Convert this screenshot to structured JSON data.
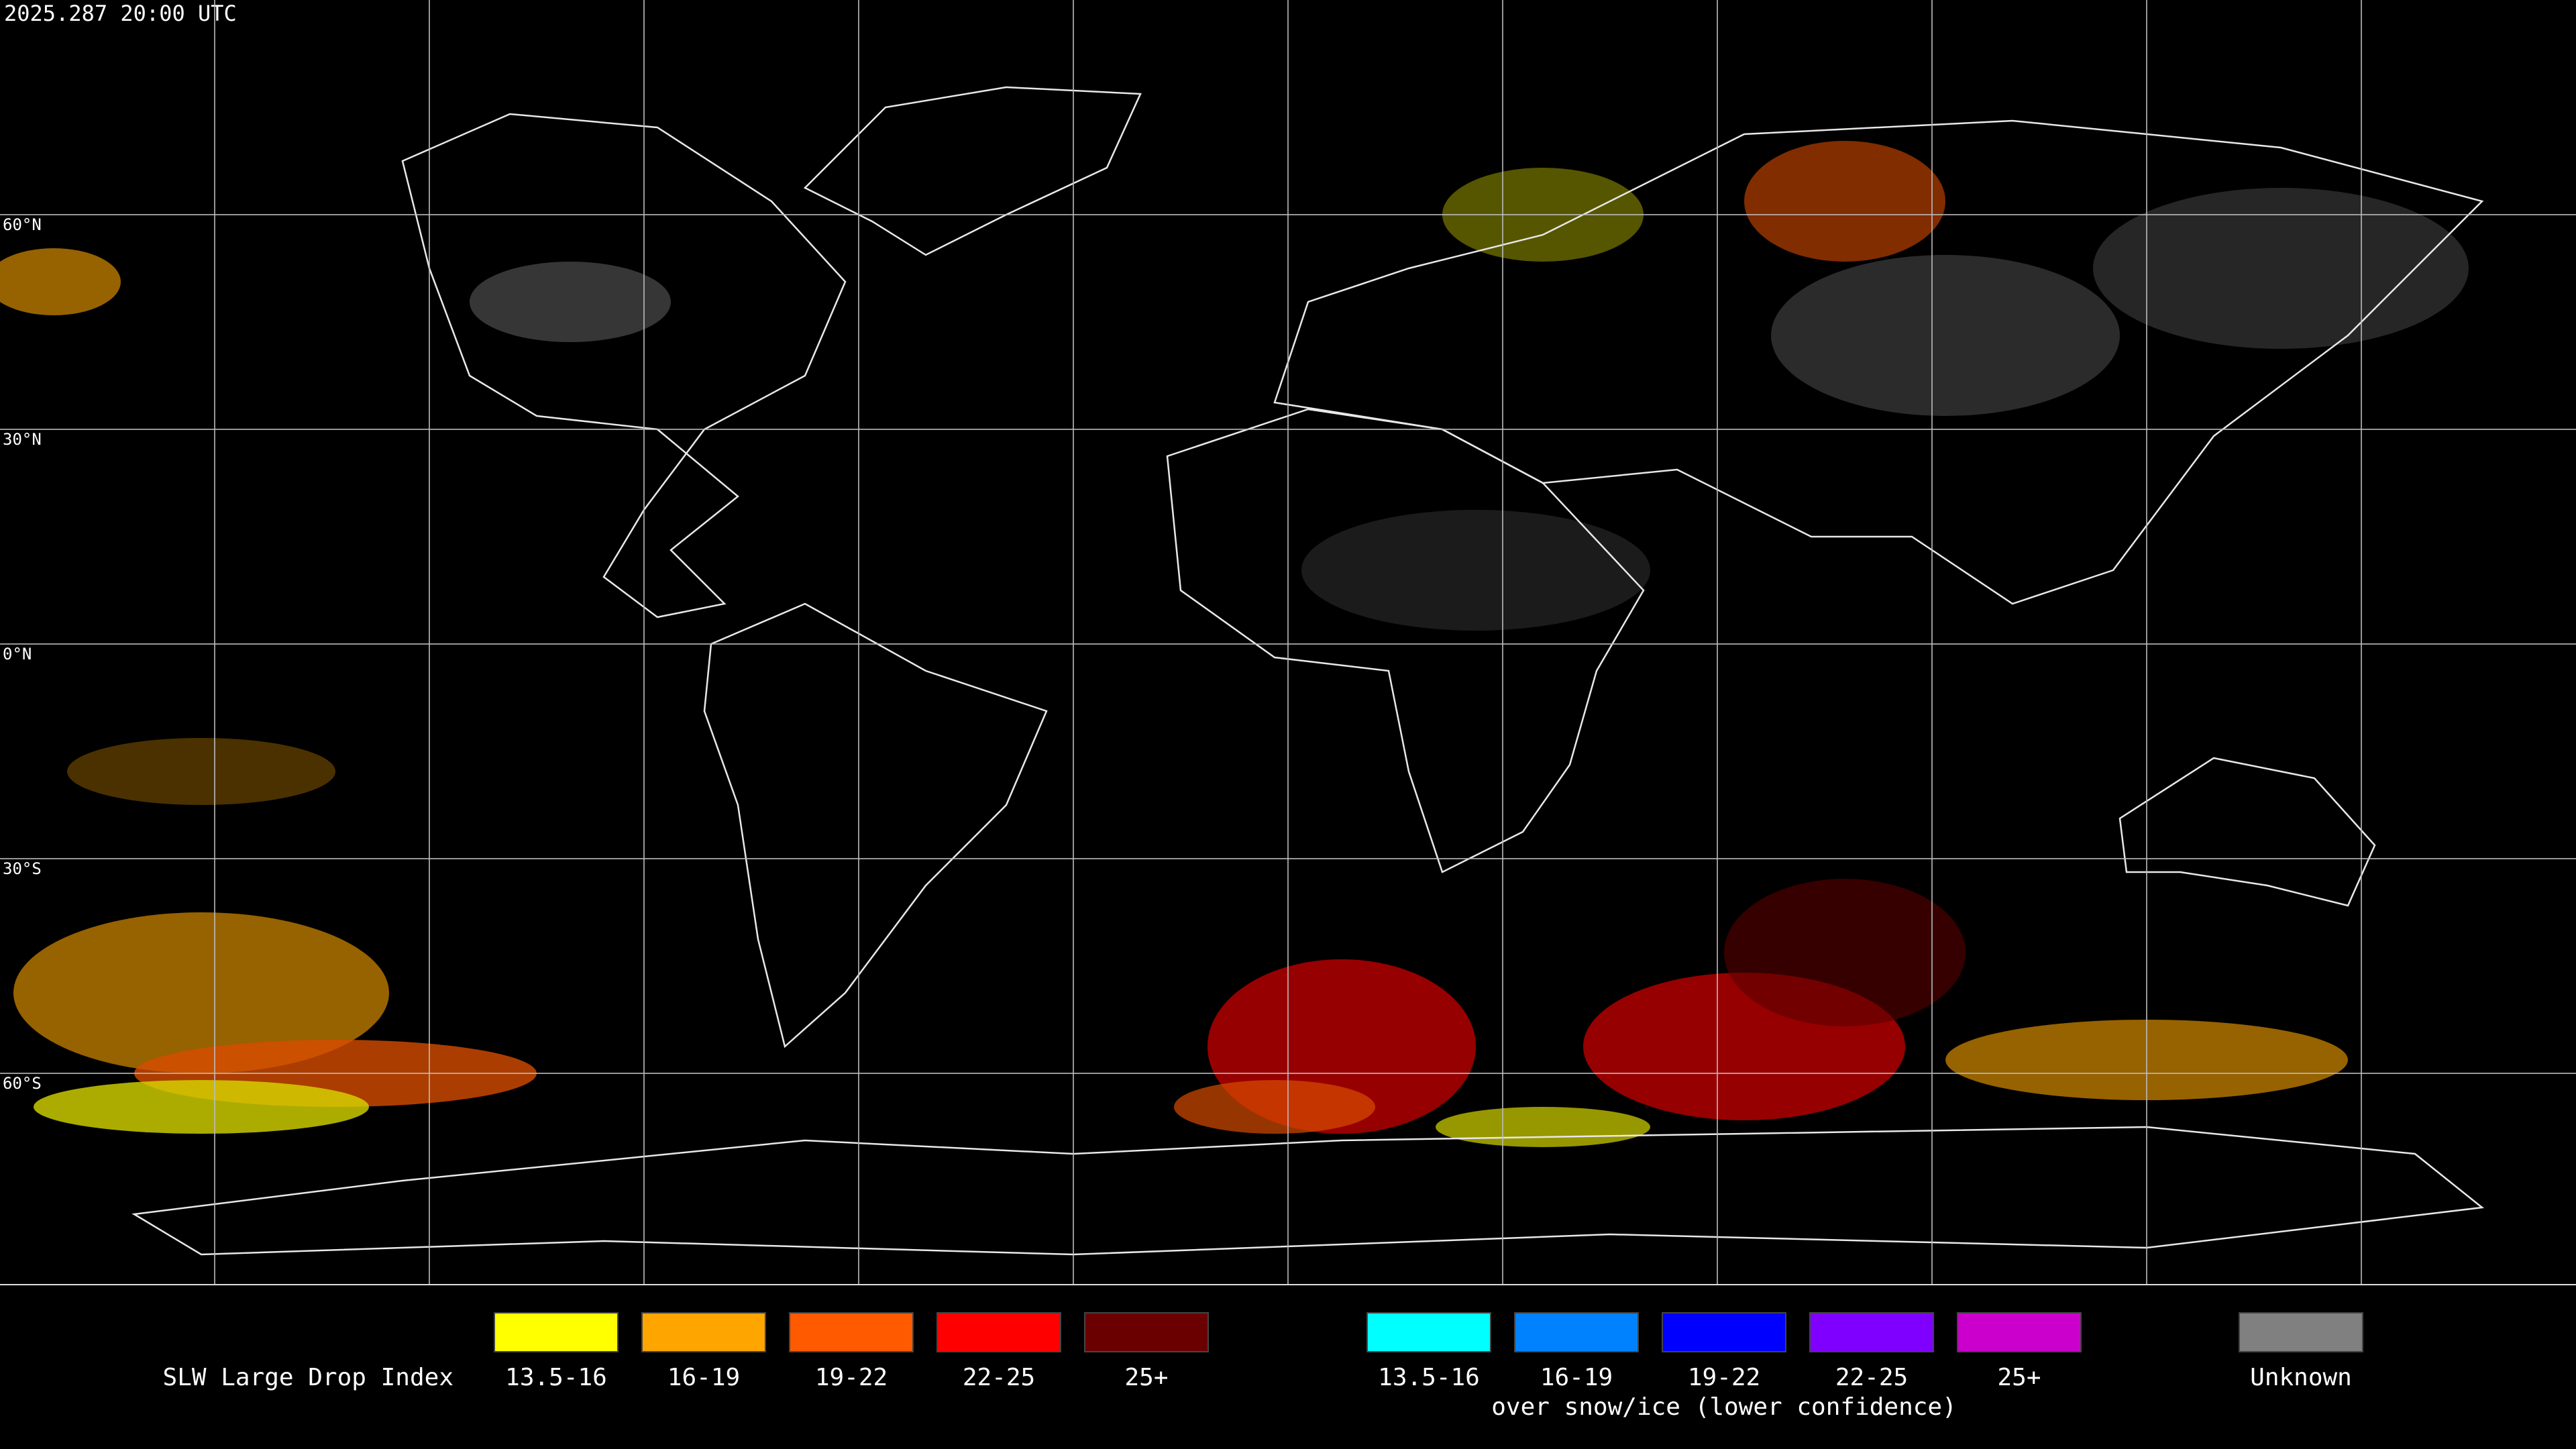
{
  "timestamp": "2025.287 20:00 UTC",
  "grid_labels": [
    "60°N",
    "30°N",
    "0°N",
    "30°S",
    "60°S"
  ],
  "legend": {
    "title": "SLW Large Drop Index",
    "groups": [
      {
        "items": [
          {
            "label": "13.5-16",
            "color": "#ffff00"
          },
          {
            "label": "16-19",
            "color": "#ffa500"
          },
          {
            "label": "19-22",
            "color": "#ff5a00"
          },
          {
            "label": "22-25",
            "color": "#ff0000"
          },
          {
            "label": "25+",
            "color": "#6b0000"
          }
        ]
      },
      {
        "items": [
          {
            "label": "13.5-16",
            "color": "#00ffff"
          },
          {
            "label": "16-19",
            "color": "#0082ff"
          },
          {
            "label": "19-22",
            "color": "#0000ff"
          },
          {
            "label": "22-25",
            "color": "#7f00ff"
          },
          {
            "label": "25+",
            "color": "#cc00cc"
          }
        ],
        "caption": "over snow/ice (lower confidence)"
      },
      {
        "items": [
          {
            "label": "Unknown",
            "color": "#808080"
          }
        ]
      }
    ]
  }
}
